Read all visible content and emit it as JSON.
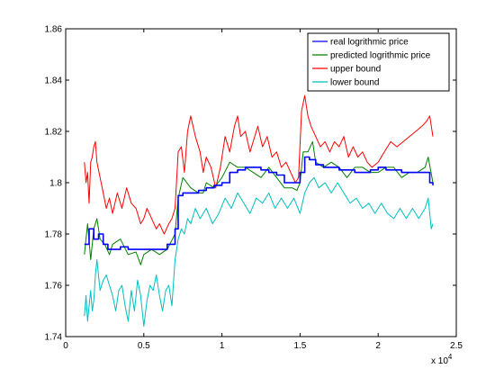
{
  "chart_data": {
    "type": "line",
    "xlim": [
      0,
      2.5
    ],
    "ylim": [
      1.74,
      1.86
    ],
    "x_ticks": [
      0,
      0.5,
      1,
      1.5,
      2,
      2.5
    ],
    "x_tick_labels": [
      "0",
      "0.5",
      "1",
      "1.5",
      "2",
      "2.5"
    ],
    "y_ticks": [
      1.74,
      1.76,
      1.78,
      1.8,
      1.82,
      1.84,
      1.86
    ],
    "y_tick_labels": [
      "1.74",
      "1.76",
      "1.78",
      "1.8",
      "1.82",
      "1.84",
      "1.86"
    ],
    "x_exponent_label": "x 10",
    "x_exponent_power": "4",
    "legend_position": "top-right",
    "grid": false,
    "series": [
      {
        "name": "real logrithmic price",
        "color": "#0000ff",
        "step": true,
        "x": [
          0.12,
          0.15,
          0.18,
          0.21,
          0.24,
          0.27,
          0.3,
          0.35,
          0.4,
          0.45,
          0.5,
          0.55,
          0.6,
          0.65,
          0.7,
          0.72,
          0.75,
          0.8,
          0.85,
          0.9,
          0.95,
          1.0,
          1.05,
          1.1,
          1.15,
          1.2,
          1.25,
          1.3,
          1.35,
          1.4,
          1.45,
          1.5,
          1.53,
          1.56,
          1.6,
          1.65,
          1.7,
          1.75,
          1.8,
          1.85,
          1.9,
          1.95,
          2.0,
          2.05,
          2.1,
          2.15,
          2.2,
          2.25,
          2.3,
          2.33,
          2.35
        ],
        "y": [
          1.776,
          1.782,
          1.778,
          1.78,
          1.776,
          1.774,
          1.774,
          1.775,
          1.774,
          1.774,
          1.774,
          1.774,
          1.774,
          1.776,
          1.782,
          1.795,
          1.796,
          1.796,
          1.797,
          1.798,
          1.799,
          1.8,
          1.804,
          1.805,
          1.806,
          1.806,
          1.805,
          1.804,
          1.803,
          1.8,
          1.8,
          1.804,
          1.81,
          1.809,
          1.807,
          1.806,
          1.806,
          1.805,
          1.805,
          1.804,
          1.804,
          1.805,
          1.806,
          1.805,
          1.805,
          1.804,
          1.804,
          1.804,
          1.804,
          1.8,
          1.799
        ]
      },
      {
        "name": "predicted logrithmic price",
        "color": "#008000",
        "step": false,
        "x": [
          0.12,
          0.14,
          0.16,
          0.18,
          0.2,
          0.22,
          0.25,
          0.28,
          0.3,
          0.35,
          0.4,
          0.45,
          0.48,
          0.5,
          0.55,
          0.6,
          0.65,
          0.7,
          0.72,
          0.75,
          0.8,
          0.85,
          0.88,
          0.9,
          0.95,
          1.0,
          1.05,
          1.1,
          1.15,
          1.2,
          1.25,
          1.3,
          1.35,
          1.4,
          1.45,
          1.48,
          1.5,
          1.52,
          1.55,
          1.58,
          1.6,
          1.65,
          1.7,
          1.75,
          1.8,
          1.85,
          1.9,
          1.95,
          2.0,
          2.05,
          2.1,
          2.15,
          2.2,
          2.25,
          2.3,
          2.32,
          2.35
        ],
        "y": [
          1.772,
          1.784,
          1.77,
          1.782,
          1.786,
          1.778,
          1.776,
          1.772,
          1.776,
          1.778,
          1.772,
          1.773,
          1.768,
          1.772,
          1.774,
          1.772,
          1.774,
          1.78,
          1.794,
          1.802,
          1.798,
          1.796,
          1.796,
          1.8,
          1.798,
          1.802,
          1.808,
          1.806,
          1.806,
          1.804,
          1.802,
          1.806,
          1.802,
          1.798,
          1.798,
          1.797,
          1.8,
          1.812,
          1.812,
          1.816,
          1.808,
          1.806,
          1.808,
          1.806,
          1.802,
          1.806,
          1.806,
          1.804,
          1.804,
          1.806,
          1.806,
          1.802,
          1.804,
          1.804,
          1.806,
          1.81,
          1.8
        ]
      },
      {
        "name": "upper bound",
        "color": "#ff0000",
        "step": false,
        "x": [
          0.12,
          0.13,
          0.14,
          0.15,
          0.16,
          0.17,
          0.18,
          0.19,
          0.2,
          0.22,
          0.24,
          0.26,
          0.28,
          0.3,
          0.33,
          0.36,
          0.39,
          0.42,
          0.45,
          0.48,
          0.5,
          0.52,
          0.55,
          0.58,
          0.6,
          0.63,
          0.66,
          0.68,
          0.7,
          0.72,
          0.74,
          0.76,
          0.78,
          0.8,
          0.83,
          0.86,
          0.88,
          0.9,
          0.93,
          0.96,
          0.99,
          1.02,
          1.05,
          1.08,
          1.1,
          1.12,
          1.15,
          1.18,
          1.2,
          1.23,
          1.26,
          1.29,
          1.32,
          1.35,
          1.38,
          1.41,
          1.44,
          1.47,
          1.49,
          1.51,
          1.53,
          1.55,
          1.57,
          1.6,
          1.63,
          1.66,
          1.69,
          1.72,
          1.75,
          1.78,
          1.81,
          1.84,
          1.87,
          1.9,
          1.93,
          1.96,
          2.0,
          2.04,
          2.08,
          2.12,
          2.16,
          2.2,
          2.24,
          2.28,
          2.31,
          2.33,
          2.35
        ],
        "y": [
          1.808,
          1.8,
          1.804,
          1.792,
          1.808,
          1.81,
          1.814,
          1.816,
          1.808,
          1.802,
          1.796,
          1.79,
          1.794,
          1.788,
          1.796,
          1.79,
          1.798,
          1.792,
          1.79,
          1.784,
          1.786,
          1.79,
          1.786,
          1.782,
          1.784,
          1.78,
          1.784,
          1.786,
          1.79,
          1.812,
          1.814,
          1.804,
          1.82,
          1.826,
          1.818,
          1.812,
          1.804,
          1.81,
          1.806,
          1.798,
          1.806,
          1.818,
          1.812,
          1.822,
          1.826,
          1.818,
          1.82,
          1.812,
          1.816,
          1.822,
          1.814,
          1.818,
          1.81,
          1.812,
          1.806,
          1.808,
          1.804,
          1.8,
          1.802,
          1.828,
          1.834,
          1.826,
          1.822,
          1.818,
          1.814,
          1.816,
          1.812,
          1.816,
          1.814,
          1.818,
          1.81,
          1.814,
          1.81,
          1.812,
          1.808,
          1.806,
          1.808,
          1.812,
          1.816,
          1.814,
          1.816,
          1.818,
          1.82,
          1.822,
          1.824,
          1.826,
          1.818
        ]
      },
      {
        "name": "lower bound",
        "color": "#00bfbf",
        "step": false,
        "x": [
          0.12,
          0.13,
          0.14,
          0.15,
          0.16,
          0.17,
          0.18,
          0.19,
          0.2,
          0.22,
          0.24,
          0.26,
          0.28,
          0.3,
          0.32,
          0.34,
          0.36,
          0.38,
          0.4,
          0.42,
          0.44,
          0.46,
          0.48,
          0.5,
          0.52,
          0.54,
          0.56,
          0.58,
          0.6,
          0.62,
          0.64,
          0.66,
          0.68,
          0.7,
          0.72,
          0.74,
          0.76,
          0.78,
          0.8,
          0.83,
          0.86,
          0.9,
          0.94,
          0.98,
          1.02,
          1.06,
          1.1,
          1.14,
          1.18,
          1.22,
          1.26,
          1.3,
          1.34,
          1.38,
          1.42,
          1.46,
          1.5,
          1.53,
          1.56,
          1.59,
          1.62,
          1.66,
          1.7,
          1.74,
          1.78,
          1.82,
          1.86,
          1.9,
          1.94,
          1.98,
          2.02,
          2.06,
          2.1,
          2.14,
          2.18,
          2.22,
          2.26,
          2.3,
          2.32,
          2.34,
          2.35
        ],
        "y": [
          1.748,
          1.756,
          1.746,
          1.752,
          1.758,
          1.75,
          1.754,
          1.764,
          1.77,
          1.758,
          1.762,
          1.764,
          1.76,
          1.756,
          1.75,
          1.758,
          1.76,
          1.752,
          1.746,
          1.758,
          1.75,
          1.762,
          1.756,
          1.744,
          1.754,
          1.76,
          1.758,
          1.764,
          1.756,
          1.75,
          1.758,
          1.76,
          1.752,
          1.77,
          1.778,
          1.782,
          1.78,
          1.786,
          1.784,
          1.79,
          1.786,
          1.79,
          1.784,
          1.788,
          1.794,
          1.79,
          1.796,
          1.792,
          1.788,
          1.794,
          1.792,
          1.796,
          1.79,
          1.794,
          1.79,
          1.794,
          1.788,
          1.796,
          1.8,
          1.802,
          1.798,
          1.8,
          1.796,
          1.8,
          1.796,
          1.792,
          1.794,
          1.79,
          1.792,
          1.788,
          1.792,
          1.788,
          1.786,
          1.79,
          1.786,
          1.79,
          1.786,
          1.79,
          1.794,
          1.782,
          1.784
        ]
      }
    ]
  }
}
